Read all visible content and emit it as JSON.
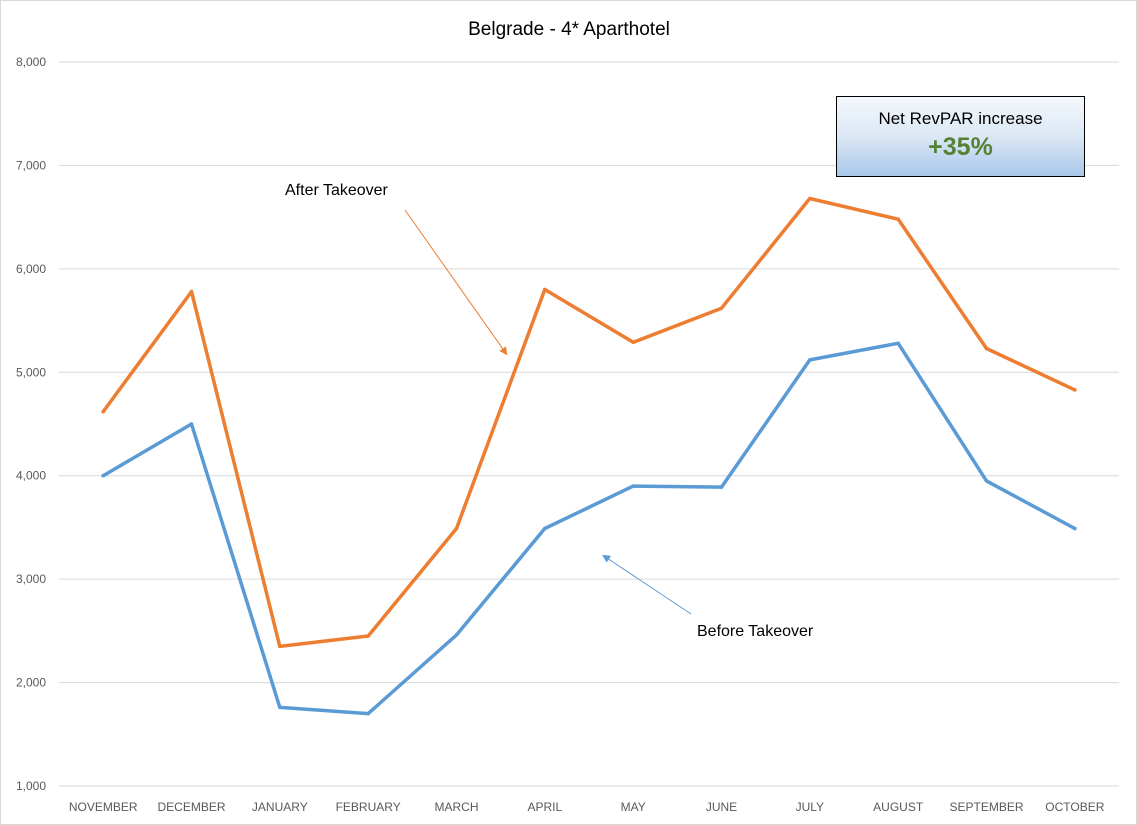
{
  "chart_data": {
    "type": "line",
    "title": "Belgrade - 4* Aparthotel",
    "xlabel": "",
    "ylabel": "",
    "categories": [
      "NOVEMBER",
      "DECEMBER",
      "JANUARY",
      "FEBRUARY",
      "MARCH",
      "APRIL",
      "MAY",
      "JUNE",
      "JULY",
      "AUGUST",
      "SEPTEMBER",
      "OCTOBER"
    ],
    "ylim": [
      1000,
      8000
    ],
    "yticks": [
      1000,
      2000,
      3000,
      4000,
      5000,
      6000,
      7000,
      8000
    ],
    "ytick_labels": [
      "1,000",
      "2,000",
      "3,000",
      "4,000",
      "5,000",
      "6,000",
      "7,000",
      "8,000"
    ],
    "grid": true,
    "legend": "none",
    "series": [
      {
        "key": "after",
        "color": "#ed7d31",
        "values": [
          4620,
          5780,
          2350,
          2450,
          3490,
          5800,
          5290,
          5620,
          6680,
          6480,
          5230,
          4830
        ]
      },
      {
        "key": "before",
        "color": "#5b9bd5",
        "values": [
          4000,
          4500,
          1760,
          1700,
          2460,
          3490,
          3900,
          3890,
          5120,
          5280,
          3950,
          3490
        ]
      }
    ],
    "annotations": [
      {
        "text": "After Takeover",
        "color": "#ed7d31",
        "target_category": "APRIL",
        "target_value": 5500
      },
      {
        "text": "Before Takeover",
        "color": "#5b9bd5",
        "target_category": "APRIL",
        "target_value": 3550
      }
    ],
    "callout": {
      "label": "Net RevPAR increase",
      "value": "+35%",
      "value_color": "#548235"
    }
  }
}
